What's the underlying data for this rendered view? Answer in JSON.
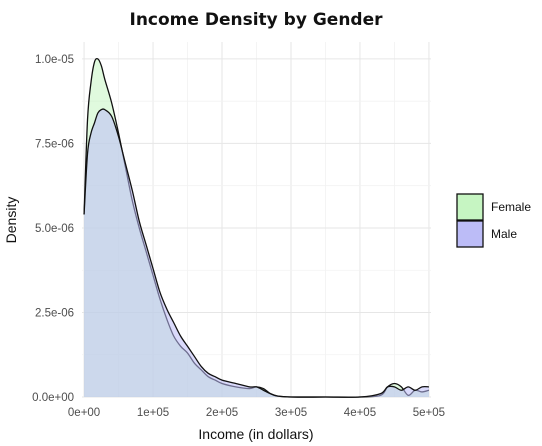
{
  "chart_data": {
    "type": "area",
    "title": "Income Density by Gender",
    "xlabel": "Income (in dollars)",
    "ylabel": "Density",
    "xlim": [
      -3000,
      503000
    ],
    "ylim": [
      0,
      1.05e-05
    ],
    "x_ticks": [
      0,
      100000,
      200000,
      300000,
      400000,
      500000
    ],
    "x_tick_labels": [
      "0e+00",
      "1e+05",
      "2e+05",
      "3e+05",
      "4e+05",
      "5e+05"
    ],
    "y_ticks": [
      0,
      2.5e-06,
      5e-06,
      7.5e-06,
      1e-05
    ],
    "y_tick_labels": [
      "0.0e+00",
      "2.5e-06",
      "5.0e-06",
      "7.5e-06",
      "1.0e-05"
    ],
    "grid": true,
    "legend_position": "right",
    "series": [
      {
        "name": "Female",
        "fill": "#c6f5c2",
        "x": [
          0,
          5000,
          10000,
          15000,
          20000,
          25000,
          30000,
          40000,
          50000,
          60000,
          70000,
          80000,
          90000,
          100000,
          110000,
          120000,
          130000,
          140000,
          150000,
          160000,
          170000,
          180000,
          190000,
          200000,
          220000,
          240000,
          250000,
          260000,
          270000,
          280000,
          300000,
          350000,
          400000,
          430000,
          440000,
          450000,
          460000,
          470000,
          480000,
          490000,
          500000
        ],
        "values": [
          5.4e-06,
          8.2e-06,
          9.3e-06,
          9.9e-06,
          1e-05,
          9.8e-06,
          9.4e-06,
          8.7e-06,
          7.8e-06,
          6.8e-06,
          5.8e-06,
          5e-06,
          4.3e-06,
          3.6e-06,
          2.9e-06,
          2.3e-06,
          1.8e-06,
          1.5e-06,
          1.3e-06,
          1e-06,
          8e-07,
          6e-07,
          5e-07,
          4e-07,
          3e-07,
          2.5e-07,
          3e-07,
          2.5e-07,
          1e-07,
          3e-08,
          0.0,
          0.0,
          0.0,
          5e-08,
          3e-07,
          4e-07,
          3e-07,
          5e-08,
          2e-07,
          1.5e-07,
          2e-07
        ]
      },
      {
        "name": "Male",
        "fill": "#bcbcf7",
        "x": [
          0,
          5000,
          10000,
          15000,
          20000,
          25000,
          30000,
          40000,
          50000,
          60000,
          70000,
          80000,
          90000,
          100000,
          110000,
          120000,
          130000,
          140000,
          150000,
          160000,
          170000,
          180000,
          190000,
          200000,
          220000,
          240000,
          250000,
          260000,
          270000,
          280000,
          300000,
          350000,
          400000,
          430000,
          440000,
          450000,
          460000,
          470000,
          480000,
          490000,
          500000
        ],
        "values": [
          5.4e-06,
          7.2e-06,
          7.8e-06,
          8.1e-06,
          8.4e-06,
          8.5e-06,
          8.5e-06,
          8.3e-06,
          7.7e-06,
          6.9e-06,
          6.1e-06,
          5.2e-06,
          4.5e-06,
          3.8e-06,
          3.1e-06,
          2.6e-06,
          2.2e-06,
          1.8e-06,
          1.5e-06,
          1.2e-06,
          9e-07,
          7e-07,
          6e-07,
          5e-07,
          4e-07,
          3e-07,
          3e-07,
          2e-07,
          1e-07,
          3e-08,
          0.0,
          0.0,
          0.0,
          1e-07,
          3e-07,
          3e-07,
          2e-07,
          3e-07,
          2e-07,
          3e-07,
          3e-07
        ]
      }
    ]
  }
}
